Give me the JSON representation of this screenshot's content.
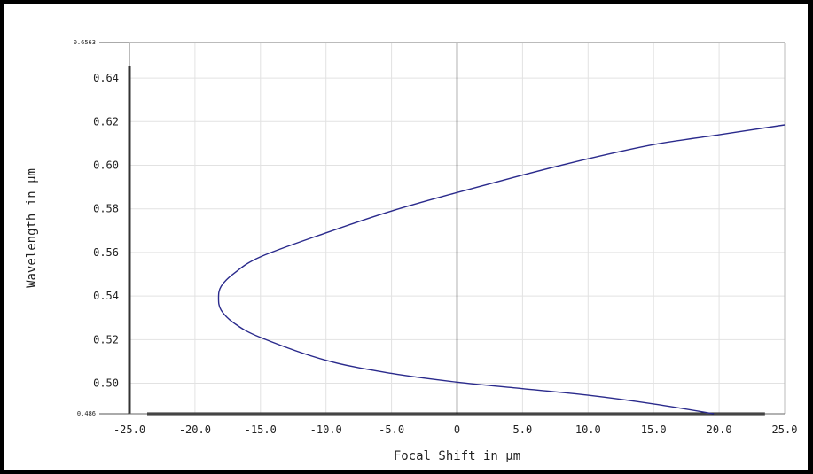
{
  "chart_data": {
    "type": "line",
    "xlabel": "Focal Shift in µm",
    "ylabel": "Wavelength in µm",
    "xlim": [
      -25.0,
      25.0
    ],
    "ylim": [
      0.486,
      0.6563
    ],
    "x_ticks": [
      "-25.0",
      "-20.0",
      "-15.0",
      "-10.0",
      "-5.0",
      "0",
      "5.0",
      "10.0",
      "15.0",
      "20.0",
      "25.0"
    ],
    "y_ticks": [
      "0.50",
      "0.52",
      "0.54",
      "0.56",
      "0.58",
      "0.60",
      "0.62",
      "0.64"
    ],
    "y_min_label": "0.486",
    "y_max_label": "0.6563",
    "grid": true,
    "line_color": "#2a2a8c",
    "series": [
      {
        "x": [
          19.6,
          15.0,
          10.0,
          5.0,
          0.0,
          -5.0,
          -10.0,
          -15.0,
          -17.0,
          -18.0,
          -18.2,
          -18.0,
          -17.0,
          -15.0,
          -10.0,
          -5.0,
          0.0,
          5.0,
          10.0,
          15.0,
          20.0,
          25.0
        ],
        "y": [
          0.486,
          0.4905,
          0.4945,
          0.4975,
          0.5005,
          0.5045,
          0.5105,
          0.521,
          0.5275,
          0.5335,
          0.539,
          0.5445,
          0.5505,
          0.558,
          0.569,
          0.579,
          0.5875,
          0.5955,
          0.603,
          0.6095,
          0.614,
          0.6185
        ]
      }
    ]
  }
}
